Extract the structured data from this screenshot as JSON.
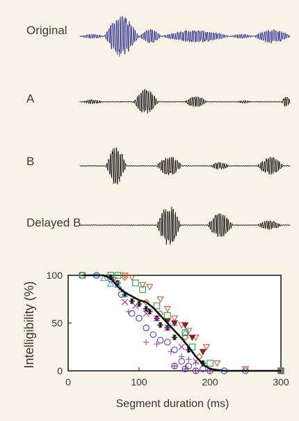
{
  "waveforms": [
    {
      "label": "Original",
      "color": "#2e2f8f"
    },
    {
      "label": "A",
      "color": "#111111"
    },
    {
      "label": "B",
      "color": "#111111"
    },
    {
      "label": "Delayed B",
      "color": "#111111"
    }
  ],
  "chart_data": {
    "type": "scatter",
    "title": "",
    "xlabel": "Segment duration (ms)",
    "ylabel": "Intelligibility (%)",
    "xlim": [
      0,
      300
    ],
    "ylim": [
      0,
      100
    ],
    "xticks": [
      "0",
      "100",
      "200",
      "300"
    ],
    "yticks": [
      "0",
      "50",
      "100"
    ],
    "grid": false,
    "legend": "none",
    "series": [
      {
        "marker": "circle",
        "color": "#4b3fc4",
        "points": [
          [
            20,
            100
          ],
          [
            40,
            100
          ],
          [
            60,
            96
          ],
          [
            75,
            80
          ],
          [
            90,
            60
          ],
          [
            100,
            55
          ],
          [
            110,
            45
          ],
          [
            120,
            38
          ],
          [
            130,
            32
          ],
          [
            140,
            30
          ],
          [
            150,
            22
          ],
          [
            160,
            10
          ],
          [
            170,
            5
          ],
          [
            190,
            2
          ],
          [
            220,
            0
          ],
          [
            250,
            0
          ],
          [
            300,
            0
          ]
        ]
      },
      {
        "marker": "star",
        "color": "#1a1a1a",
        "points": [
          [
            60,
            98
          ],
          [
            70,
            92
          ],
          [
            80,
            80
          ],
          [
            90,
            73
          ],
          [
            100,
            70
          ],
          [
            110,
            65
          ],
          [
            115,
            62
          ],
          [
            125,
            55
          ],
          [
            130,
            48
          ],
          [
            140,
            45
          ],
          [
            150,
            35
          ],
          [
            170,
            22
          ],
          [
            190,
            8
          ],
          [
            300,
            0
          ]
        ]
      },
      {
        "marker": "x",
        "color": "#b0309a",
        "points": [
          [
            65,
            95
          ],
          [
            80,
            72
          ],
          [
            95,
            68
          ],
          [
            110,
            60
          ],
          [
            125,
            55
          ],
          [
            140,
            45
          ],
          [
            160,
            25
          ],
          [
            180,
            10
          ],
          [
            300,
            0
          ]
        ]
      },
      {
        "marker": "plus",
        "color": "#b7479c",
        "points": [
          [
            75,
            85
          ],
          [
            85,
            62
          ],
          [
            110,
            30
          ],
          [
            125,
            28
          ],
          [
            145,
            20
          ],
          [
            160,
            15
          ],
          [
            170,
            12
          ],
          [
            180,
            8
          ],
          [
            300,
            0
          ]
        ]
      },
      {
        "marker": "triangle-up",
        "color": "#3aa8c6",
        "points": [
          [
            40,
            100
          ],
          [
            50,
            97
          ],
          [
            60,
            91
          ],
          [
            70,
            90
          ],
          [
            80,
            80
          ],
          [
            150,
            50
          ],
          [
            165,
            40
          ],
          [
            300,
            0
          ]
        ]
      },
      {
        "marker": "triangle-down",
        "color": "#c85c3a",
        "points": [
          [
            80,
            100
          ],
          [
            90,
            98
          ],
          [
            105,
            90
          ],
          [
            115,
            88
          ],
          [
            130,
            75
          ],
          [
            140,
            65
          ],
          [
            150,
            55
          ],
          [
            160,
            48
          ],
          [
            170,
            42
          ],
          [
            180,
            35
          ],
          [
            195,
            25
          ],
          [
            210,
            8
          ],
          [
            250,
            2
          ],
          [
            300,
            0
          ]
        ]
      },
      {
        "marker": "triangle-down-filled",
        "color": "#8e1f2b",
        "points": [
          [
            140,
            52
          ],
          [
            150,
            50
          ],
          [
            165,
            48
          ],
          [
            175,
            35
          ],
          [
            190,
            20
          ]
        ]
      },
      {
        "marker": "square",
        "color": "#2f9a3f",
        "points": [
          [
            20,
            100
          ],
          [
            60,
            100
          ],
          [
            70,
            100
          ],
          [
            95,
            92
          ],
          [
            105,
            85
          ],
          [
            125,
            68
          ],
          [
            140,
            58
          ],
          [
            165,
            40
          ],
          [
            175,
            25
          ],
          [
            200,
            8
          ],
          [
            300,
            0
          ]
        ]
      },
      {
        "marker": "diamond",
        "color": "#b06a1a",
        "points": [
          [
            80,
            98
          ],
          [
            110,
            72
          ],
          [
            130,
            60
          ],
          [
            165,
            35
          ],
          [
            185,
            15
          ]
        ]
      },
      {
        "marker": "circle-plus",
        "color": "#7a2f9a",
        "points": [
          [
            150,
            5
          ],
          [
            165,
            2
          ],
          [
            180,
            0
          ],
          [
            200,
            0
          ]
        ]
      }
    ],
    "fit_line": [
      [
        20,
        100
      ],
      [
        50,
        100
      ],
      [
        60,
        97
      ],
      [
        70,
        88
      ],
      [
        80,
        82
      ],
      [
        90,
        78
      ],
      [
        100,
        74
      ],
      [
        110,
        72
      ],
      [
        120,
        66
      ],
      [
        130,
        58
      ],
      [
        140,
        50
      ],
      [
        150,
        42
      ],
      [
        160,
        34
      ],
      [
        170,
        25
      ],
      [
        180,
        15
      ],
      [
        190,
        7
      ],
      [
        200,
        2
      ],
      [
        220,
        0
      ],
      [
        300,
        0
      ]
    ]
  }
}
